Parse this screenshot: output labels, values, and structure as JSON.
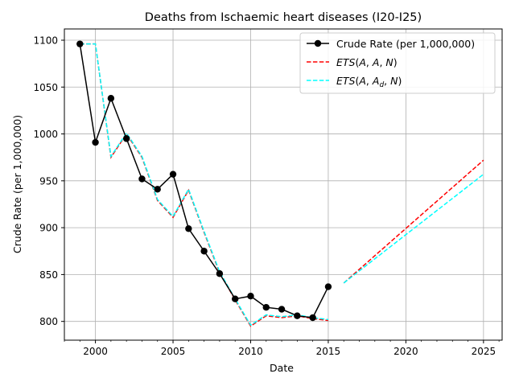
{
  "chart_data": {
    "type": "line",
    "title": "Deaths from Ischaemic heart diseases (I20-I25)",
    "xlabel": "Date",
    "ylabel": "Crude Rate (per 1,000,000)",
    "xlim": [
      1998.0,
      2026.2
    ],
    "ylim": [
      780,
      1112
    ],
    "x_ticks": [
      2000,
      2005,
      2010,
      2015,
      2020,
      2025
    ],
    "x_minor_step": 1,
    "y_ticks": [
      800,
      850,
      900,
      950,
      1000,
      1050,
      1100
    ],
    "grid": true,
    "legend_position": "top-right",
    "series": [
      {
        "name": "Crude Rate (per 1,000,000)",
        "style": "solid-markers",
        "color": "#000000",
        "x": [
          1999,
          2000,
          2001,
          2002,
          2003,
          2004,
          2005,
          2006,
          2007,
          2008,
          2009,
          2010,
          2011,
          2012,
          2013,
          2014,
          2015
        ],
        "values": [
          1096,
          991,
          1038,
          995,
          952,
          941,
          957,
          899,
          875,
          851,
          824,
          827,
          815,
          813,
          806,
          804,
          837
        ]
      },
      {
        "name": "ETS(A, A, N)",
        "style": "dashed",
        "color": "#ff0000",
        "segments": [
          {
            "x": [
              1999,
              2000,
              2001,
              2002,
              2003,
              2004,
              2005,
              2006,
              2007,
              2008,
              2009,
              2010,
              2011,
              2012,
              2013,
              2014,
              2015
            ],
            "values": [
              1096,
              1096,
              975,
              1000,
              975,
              929,
              911,
              940,
              895,
              852,
              823,
              795,
              806,
              804,
              806,
              803,
              801
            ]
          },
          {
            "x": [
              2016,
              2025
            ],
            "values": [
              841,
              972
            ]
          }
        ]
      },
      {
        "name": "ETS(A, A_d, N)",
        "style": "dashed",
        "color": "#00ffff",
        "segments": [
          {
            "x": [
              1999,
              2000,
              2001,
              2002,
              2003,
              2004,
              2005,
              2006,
              2007,
              2008,
              2009,
              2010,
              2011,
              2012,
              2013,
              2014,
              2015
            ],
            "values": [
              1096,
              1096,
              976,
              1001,
              976,
              930,
              912,
              941,
              896,
              853,
              824,
              796,
              807,
              805,
              807,
              804,
              802
            ]
          },
          {
            "x": [
              2016,
              2025
            ],
            "values": [
              841,
              957
            ]
          }
        ]
      }
    ]
  }
}
